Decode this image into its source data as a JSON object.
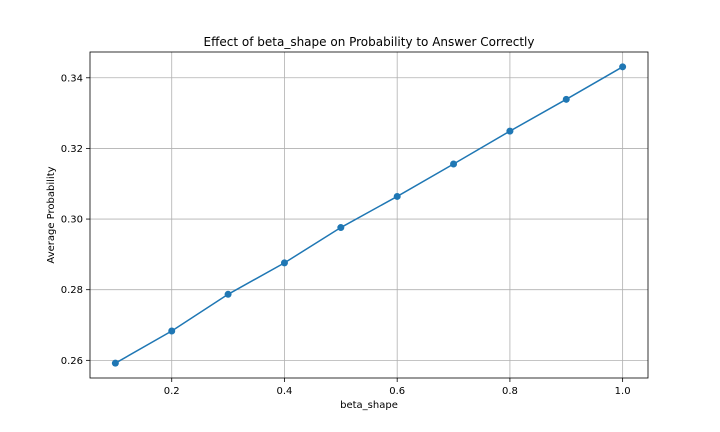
{
  "chart_data": {
    "type": "line",
    "title": "Effect of beta_shape on Probability to Answer Correctly",
    "xlabel": "beta_shape",
    "ylabel": "Average Probability",
    "x": [
      0.1,
      0.2,
      0.3,
      0.4,
      0.5,
      0.6,
      0.7,
      0.8,
      0.9,
      1.0
    ],
    "series": [
      {
        "name": "Average Probability",
        "values": [
          0.2592,
          0.2683,
          0.2787,
          0.2876,
          0.2976,
          0.3064,
          0.3156,
          0.3249,
          0.3339,
          0.3431
        ],
        "color": "#1f77b4",
        "marker": "circle"
      }
    ],
    "xlim": [
      0.055,
      1.045
    ],
    "ylim": [
      0.255,
      0.3473
    ],
    "xticks": [
      0.2,
      0.4,
      0.6,
      0.8,
      1.0
    ],
    "xtick_labels": [
      "0.2",
      "0.4",
      "0.6",
      "0.8",
      "1.0"
    ],
    "yticks": [
      0.26,
      0.28,
      0.3,
      0.32,
      0.34
    ],
    "ytick_labels": [
      "0.26",
      "0.28",
      "0.30",
      "0.32",
      "0.34"
    ],
    "grid": true,
    "legend": null
  }
}
